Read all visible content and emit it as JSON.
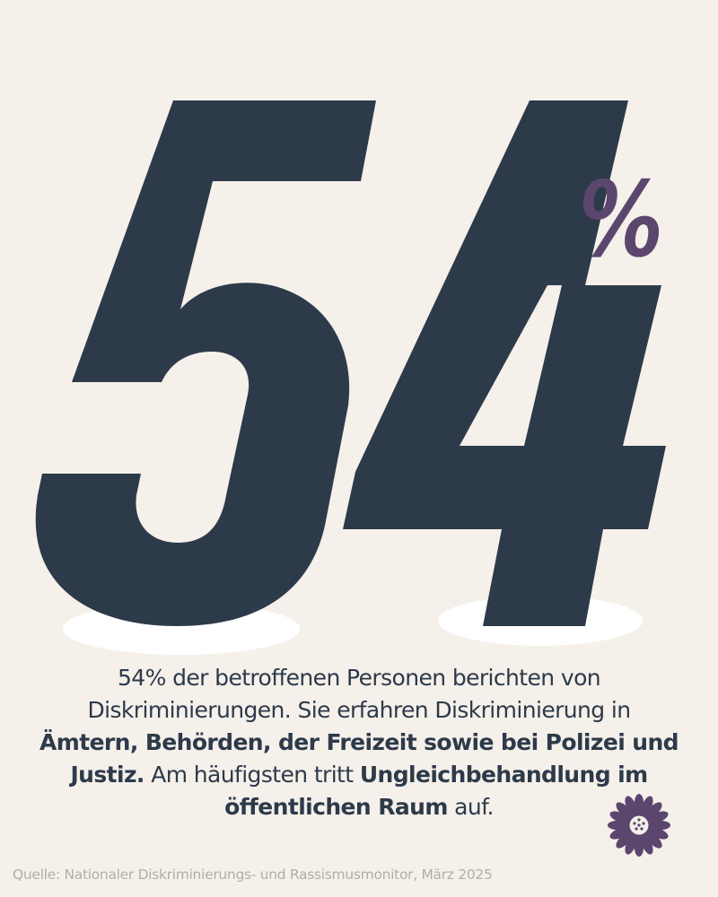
{
  "headline": {
    "number": "54",
    "unit": "%"
  },
  "body": {
    "p1": "54% der betroffenen Personen berichten von Diskriminierungen. Sie erfahren Diskriminierung in",
    "b1": "Ämtern, Behörden, der Freizeit sowie bei Polizei und Justiz.",
    "p2": "Am häufigsten tritt",
    "b2": "Ungleichbehandlung im öffentlichen Raum",
    "p3": "auf."
  },
  "source": "Quelle: Nationaler Diskriminierungs- und Rassismusmonitor, März 2025",
  "logo": {
    "icon": "sunflower-logo-icon",
    "color": "#5b466e"
  },
  "colors": {
    "background": "#f5f0ea",
    "number": "#2d3a4a",
    "accent": "#5b466e",
    "shadow": "#ffffff"
  }
}
